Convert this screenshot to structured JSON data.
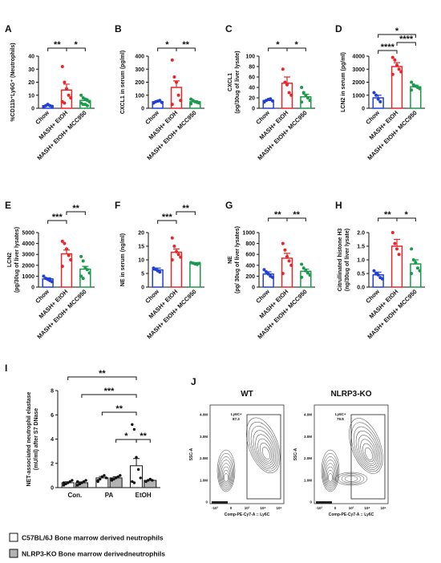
{
  "chart_data": [
    {
      "type": "bar",
      "panel": "A",
      "ylabel": [
        "%CD11b⁺Ly6G⁺ (Neutrophils)"
      ],
      "categories": [
        "Chow",
        "MASH+ EtOH",
        "MASH+ EtOH+ MCC950"
      ],
      "colors": [
        "#1f3fd8",
        "#e8262a",
        "#1a9a4a"
      ],
      "values": [
        2,
        14,
        6
      ],
      "errors": [
        0.5,
        4.5,
        1.3
      ],
      "points": [
        [
          1,
          2,
          3,
          2,
          1.5,
          1
        ],
        [
          32,
          20,
          15,
          10,
          8,
          5,
          4
        ],
        [
          10,
          8,
          7,
          6,
          5,
          4,
          3,
          3,
          2
        ]
      ],
      "ylim": [
        0,
        40
      ],
      "yticks": [
        0,
        10,
        20,
        30,
        40
      ],
      "annotations": [
        "**",
        "*"
      ]
    },
    {
      "type": "bar",
      "panel": "B",
      "ylabel": [
        "CXCL1 in serum (pg/ml)"
      ],
      "categories": [
        "Chow",
        "MASH+ EtOH",
        "MASH+ EtOH+ MCC950"
      ],
      "colors": [
        "#1f3fd8",
        "#e8262a",
        "#1a9a4a"
      ],
      "values": [
        50,
        160,
        50
      ],
      "errors": [
        5,
        50,
        7
      ],
      "points": [
        [
          40,
          50,
          55,
          60,
          45
        ],
        [
          370,
          240,
          200,
          100,
          60,
          30
        ],
        [
          70,
          60,
          50,
          45,
          40,
          35
        ]
      ],
      "ylim": [
        0,
        400
      ],
      "yticks": [
        0,
        100,
        200,
        300,
        400
      ],
      "annotations": [
        "*",
        "**"
      ]
    },
    {
      "type": "bar",
      "panel": "C",
      "ylabel": [
        "CXCL1",
        "(pg/30ug of liver lysate)"
      ],
      "categories": [
        "Chow",
        "MASH+ EtOH",
        "MASH+ EtOH+ MCC950"
      ],
      "colors": [
        "#1f3fd8",
        "#e8262a",
        "#1a9a4a"
      ],
      "values": [
        15,
        48,
        22
      ],
      "errors": [
        1.5,
        12,
        5
      ],
      "points": [
        [
          12,
          15,
          17,
          18,
          14
        ],
        [
          75,
          50,
          45,
          30,
          25
        ],
        [
          40,
          30,
          25,
          20,
          15,
          12
        ]
      ],
      "ylim": [
        0,
        100
      ],
      "yticks": [
        0,
        20,
        40,
        60,
        80,
        100
      ],
      "annotations": [
        "*",
        "*"
      ]
    },
    {
      "type": "bar",
      "panel": "D",
      "ylabel": [
        "LCN2 in serum (pg/ml)"
      ],
      "categories": [
        "Chow",
        "MASH+ EtOH",
        "MASH+ EtOH+ MCC950"
      ],
      "colors": [
        "#1f3fd8",
        "#e8262a",
        "#1a9a4a"
      ],
      "values": [
        800,
        3200,
        1650
      ],
      "errors": [
        200,
        300,
        120
      ],
      "points": [
        [
          1200,
          1000,
          700,
          500
        ],
        [
          3900,
          3700,
          3300,
          3000,
          2800,
          2600
        ],
        [
          2000,
          1800,
          1700,
          1600,
          1500,
          1400
        ]
      ],
      "ylim": [
        0,
        4000
      ],
      "yticks": [
        0,
        1000,
        2000,
        3000,
        4000
      ],
      "annotations": [
        "****",
        "****",
        "*"
      ]
    },
    {
      "type": "bar",
      "panel": "E",
      "ylabel": [
        "LCN2",
        "(pg/30ug of liver lysates)"
      ],
      "categories": [
        "Chow",
        "MASH+ EtOH",
        "MASH+ EtOH+ MCC950"
      ],
      "colors": [
        "#1f3fd8",
        "#e8262a",
        "#1a9a4a"
      ],
      "values": [
        750,
        3050,
        1650
      ],
      "errors": [
        100,
        350,
        250
      ],
      "points": [
        [
          1000,
          800,
          700,
          600,
          500
        ],
        [
          4200,
          4000,
          3500,
          2900,
          2500,
          1900
        ],
        [
          2800,
          2400,
          1800,
          1600,
          1300,
          1000,
          800
        ]
      ],
      "ylim": [
        0,
        5000
      ],
      "yticks": [
        0,
        1000,
        2000,
        3000,
        4000,
        5000
      ],
      "annotations": [
        "***",
        "**"
      ]
    },
    {
      "type": "bar",
      "panel": "F",
      "ylabel": [
        "NE in serum (ng/ml)"
      ],
      "categories": [
        "Chow",
        "MASH+ EtOH",
        "MASH+ EtOH+ MCC950"
      ],
      "colors": [
        "#1f3fd8",
        "#e8262a",
        "#1a9a4a"
      ],
      "values": [
        6.3,
        12.8,
        8.7
      ],
      "errors": [
        0.7,
        1.2,
        0.3
      ],
      "points": [
        [
          7,
          6.5,
          6,
          5.5
        ],
        [
          18,
          15,
          13,
          12,
          11,
          10
        ],
        [
          9,
          8.8,
          8.5,
          8.3,
          8.7
        ]
      ],
      "ylim": [
        0,
        20
      ],
      "yticks": [
        0,
        5,
        10,
        15,
        20
      ],
      "annotations": [
        "***",
        "**"
      ]
    },
    {
      "type": "bar",
      "panel": "G",
      "ylabel": [
        "NE",
        "(pg/ 30ug of liver lysates)"
      ],
      "categories": [
        "Chow",
        "MASH+ EtOH",
        "MASH+ EtOH+ MCC950"
      ],
      "colors": [
        "#1f3fd8",
        "#e8262a",
        "#1a9a4a"
      ],
      "values": [
        240,
        530,
        290
      ],
      "errors": [
        40,
        90,
        40
      ],
      "points": [
        [
          320,
          280,
          240,
          200,
          180
        ],
        [
          800,
          680,
          560,
          480,
          400,
          250
        ],
        [
          420,
          350,
          300,
          260,
          220,
          180
        ]
      ],
      "ylim": [
        0,
        1000
      ],
      "yticks": [
        0,
        200,
        400,
        600,
        800,
        1000
      ],
      "annotations": [
        "**",
        "**"
      ]
    },
    {
      "type": "bar",
      "panel": "H",
      "ylabel": [
        "Citrullinated histone H3",
        "(ng/30ug of liver lysate)"
      ],
      "categories": [
        "Chow",
        "MASH+ EtOH",
        "MASH+ EtOH+ MCC950"
      ],
      "colors": [
        "#1f3fd8",
        "#e8262a",
        "#1a9a4a"
      ],
      "values": [
        0.45,
        1.5,
        0.85
      ],
      "errors": [
        0.1,
        0.25,
        0.15
      ],
      "points": [
        [
          0.6,
          0.5,
          0.45,
          0.35,
          0.3
        ],
        [
          2.0,
          1.6,
          1.4,
          1.2
        ],
        [
          1.4,
          1.0,
          0.9,
          0.7,
          0.6,
          0.5
        ]
      ],
      "ylim": [
        0,
        2
      ],
      "yticks": [
        {
          "value": 0,
          "label": "0.0"
        },
        0.5,
        {
          "value": 1,
          "label": "1.0"
        },
        1.5,
        {
          "value": 2,
          "label": "2.0"
        }
      ],
      "annotations": [
        "**",
        "*"
      ]
    },
    {
      "type": "grouped_bar",
      "panel": "I",
      "ylabel": [
        "NET-associated neutrophil elastase",
        "(mU/ml) after S7 DNase"
      ],
      "categories": [
        "Con.",
        "PA",
        "EtOH"
      ],
      "series": [
        {
          "name": "C57BL/6J Bone marrow derived neutrophils",
          "color": "#ffffff",
          "values": [
            0.4,
            0.8,
            1.8
          ],
          "errors": [
            0.08,
            0.12,
            0.6
          ],
          "points": [
            [
              0.2,
              0.3,
              0.4,
              0.5,
              0.6,
              0.4
            ],
            [
              0.5,
              0.7,
              0.9,
              1.0,
              0.8,
              0.6
            ],
            [
              5.2,
              4.8,
              2.5,
              1.5,
              0.8,
              0.5,
              0.4
            ]
          ]
        },
        {
          "name": "NLRP3-KO Bone marrow derivedneutrophils",
          "color": "#b3b3b3",
          "values": [
            0.4,
            0.8,
            0.6
          ],
          "errors": [
            0.07,
            0.1,
            0.05
          ],
          "points": [
            [
              0.2,
              0.3,
              0.4,
              0.5,
              0.6,
              0.5
            ],
            [
              0.6,
              0.7,
              0.8,
              0.9,
              1.0,
              0.7
            ],
            [
              0.5,
              0.6,
              0.7,
              0.6
            ]
          ]
        }
      ],
      "ylim": [
        0,
        8
      ],
      "yticks": [
        0,
        2,
        4,
        6,
        8
      ],
      "annotations": [
        "**",
        "***",
        "**",
        "*",
        "**"
      ]
    }
  ],
  "flow": {
    "panel": "J",
    "ylabel": "SSC-A",
    "xlabel": "Comp-PE-Cy7-A :: Ly6C",
    "yticks": [
      "4.0M",
      "3.0M",
      "2.0M",
      "1.0M",
      "0"
    ],
    "xticks": [
      "-10³",
      "0",
      "10³",
      "10⁴",
      "10⁵"
    ],
    "plots": [
      {
        "title": "WT",
        "gate_label": "Ly6C+",
        "gate_value": 87.3
      },
      {
        "title": "NLRP3-KO",
        "gate_label": "Ly6C+",
        "gate_value": 79.8
      }
    ]
  }
}
